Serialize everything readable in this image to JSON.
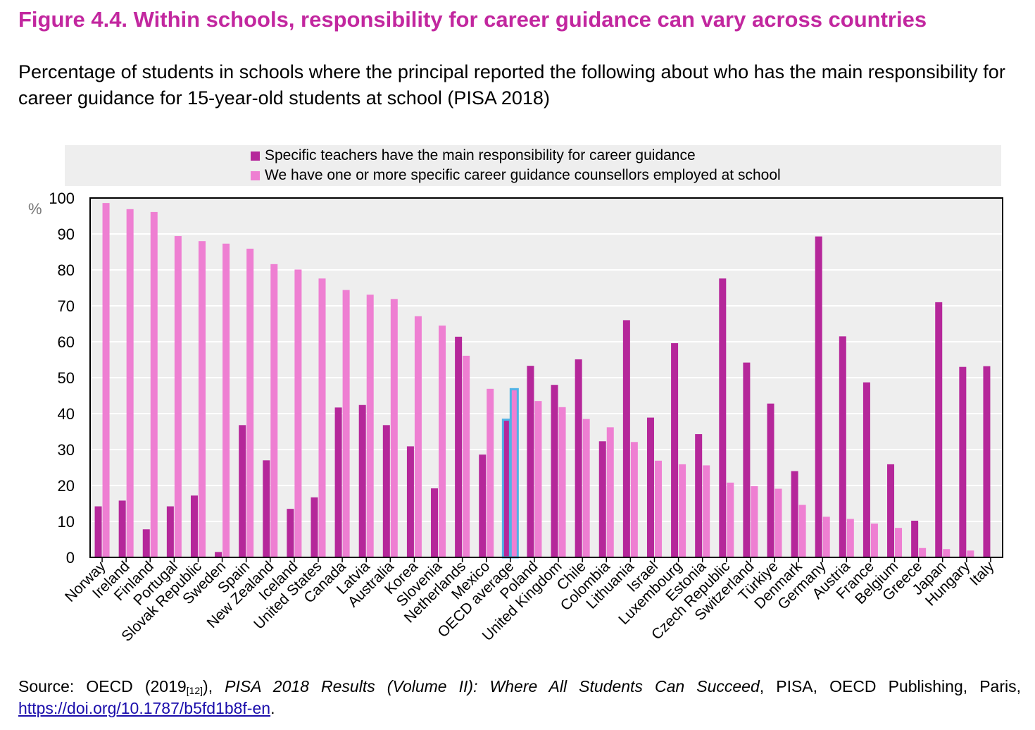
{
  "title": "Figure 4.4. Within schools, responsibility for career guidance can vary across countries",
  "subtitle": "Percentage of students in schools where the principal reported the following about who has the main responsibility for career guidance for 15-year-old students at school (PISA 2018)",
  "colors": {
    "teachers": "#b5279a",
    "counsellors": "#ee7fd2",
    "title": "#c2279f",
    "highlight_outline": "#4fb3e6",
    "plot_bg": "#eeeeee"
  },
  "source": {
    "prefix": "Source: OECD (2019",
    "ref": "[12]",
    "mid": "), ",
    "title_italic": "PISA 2018 Results (Volume II): Where All Students Can Succeed",
    "suffix": ", PISA, OECD Publishing, Paris,",
    "link": "https://doi.org/10.1787/b5fd1b8f-en",
    "end": "."
  },
  "chart_data": {
    "type": "bar",
    "ylabel": "%",
    "ylim": [
      0,
      100
    ],
    "yticks": [
      0,
      10,
      20,
      30,
      40,
      50,
      60,
      70,
      80,
      90,
      100
    ],
    "grid": true,
    "legend_position": "top",
    "highlight_category": "OECD average",
    "categories": [
      "Norway",
      "Ireland",
      "Finland",
      "Portugal",
      "Slovak Republic",
      "Sweden",
      "Spain",
      "New Zealand",
      "Iceland",
      "United States",
      "Canada",
      "Latvia",
      "Australia",
      "Korea",
      "Slovenia",
      "Netherlands",
      "Mexico",
      "OECD average",
      "Poland",
      "United Kingdom",
      "Chile",
      "Colombia",
      "Lithuania",
      "Israel",
      "Luxembourg",
      "Estonia",
      "Czech Republic",
      "Switzerland",
      "Türkiye",
      "Denmark",
      "Germany",
      "Austria",
      "France",
      "Belgium",
      "Greece",
      "Japan",
      "Hungary",
      "Italy"
    ],
    "series": [
      {
        "name": "Specific teachers have the main responsibility for career guidance",
        "values": [
          14.2,
          15.8,
          7.8,
          14.2,
          17.2,
          1.5,
          36.8,
          27.0,
          13.5,
          16.7,
          41.7,
          42.4,
          36.8,
          30.9,
          19.2,
          61.4,
          28.6,
          38.3,
          53.3,
          48.0,
          55.1,
          32.3,
          66.0,
          38.9,
          59.6,
          34.3,
          77.6,
          54.2,
          42.8,
          24.0,
          89.3,
          61.5,
          48.7,
          25.9,
          10.2,
          71.0,
          53.0,
          53.2
        ]
      },
      {
        "name": "We have one or more specific career guidance counsellors employed at school",
        "values": [
          98.6,
          96.9,
          96.1,
          89.4,
          88.0,
          87.3,
          85.9,
          81.6,
          80.1,
          77.6,
          74.4,
          73.1,
          71.9,
          67.1,
          64.5,
          56.1,
          46.9,
          46.8,
          43.5,
          41.8,
          38.5,
          36.2,
          32.1,
          26.9,
          25.9,
          25.6,
          20.8,
          19.8,
          19.1,
          14.6,
          11.3,
          10.7,
          9.4,
          8.2,
          2.6,
          2.3,
          1.9,
          0
        ]
      }
    ]
  }
}
